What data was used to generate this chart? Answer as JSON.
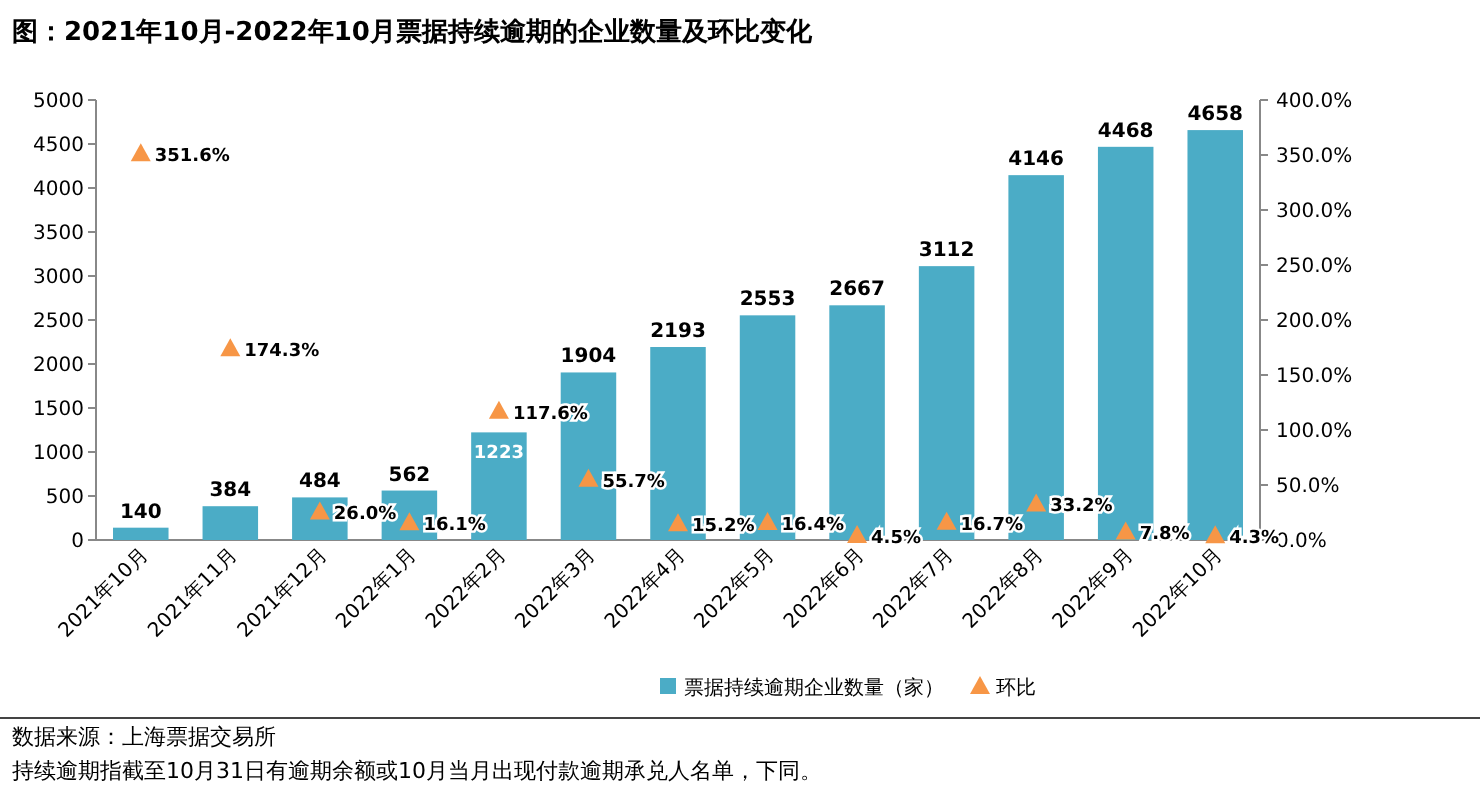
{
  "chart_data": {
    "type": "bar",
    "title": "图：2021年10月-2022年10月票据持续逾期的企业数量及环比变化",
    "categories": [
      "2021年10月",
      "2021年11月",
      "2021年12月",
      "2022年1月",
      "2022年2月",
      "2022年3月",
      "2022年4月",
      "2022年5月",
      "2022年6月",
      "2022年7月",
      "2022年8月",
      "2022年9月",
      "2022年10月"
    ],
    "series": [
      {
        "name": "票据持续逾期企业数量（家）",
        "color": "#4bacc6",
        "values": [
          140,
          384,
          484,
          562,
          1223,
          1904,
          2193,
          2553,
          2667,
          3112,
          4146,
          4468,
          4658
        ]
      },
      {
        "name": "环比",
        "type": "scatter",
        "axis": "y2",
        "marker": "triangle",
        "color": "#f79646",
        "x": [
          "2021年10月",
          "2021年11月",
          "2021年12月",
          "2022年1月",
          "2022年2月",
          "2022年3月",
          "2022年4月",
          "2022年5月",
          "2022年6月",
          "2022年7月",
          "2022年8月",
          "2022年9月",
          "2022年10月"
        ],
        "values": [
          351.6,
          174.3,
          26.0,
          16.1,
          117.6,
          55.7,
          15.2,
          16.4,
          4.5,
          16.7,
          33.2,
          7.8,
          4.3
        ],
        "value_labels": [
          "351.6%",
          "174.3%",
          "26.0%",
          "16.1%",
          "117.6%",
          "55.7%",
          "15.2%",
          "16.4%",
          "4.5%",
          "16.7%",
          "33.2%",
          "7.8%",
          "4.3%"
        ]
      }
    ],
    "data_labels": true,
    "ylim": [
      0,
      5000
    ],
    "yticks": [
      0,
      500,
      1000,
      1500,
      2000,
      2500,
      3000,
      3500,
      4000,
      4500,
      5000
    ],
    "y2lim": [
      0,
      400
    ],
    "y2ticks": [
      {
        "value": 0,
        "label": "0.0%"
      },
      {
        "value": 50,
        "label": "50.0%"
      },
      {
        "value": 100,
        "label": "100.0%"
      },
      {
        "value": 150,
        "label": "150.0%"
      },
      {
        "value": 200,
        "label": "200.0%"
      },
      {
        "value": 250,
        "label": "250.0%"
      },
      {
        "value": 300,
        "label": "300.0%"
      },
      {
        "value": 350,
        "label": "350.0%"
      },
      {
        "value": 400,
        "label": "400.0%"
      }
    ],
    "grid": false,
    "legend": "bottom",
    "annotations": [
      "数据来源：上海票据交易所",
      "持续逾期指截至10月31日有逾期余额或10月当月出现付款逾期承兑人名单，下同。"
    ]
  }
}
